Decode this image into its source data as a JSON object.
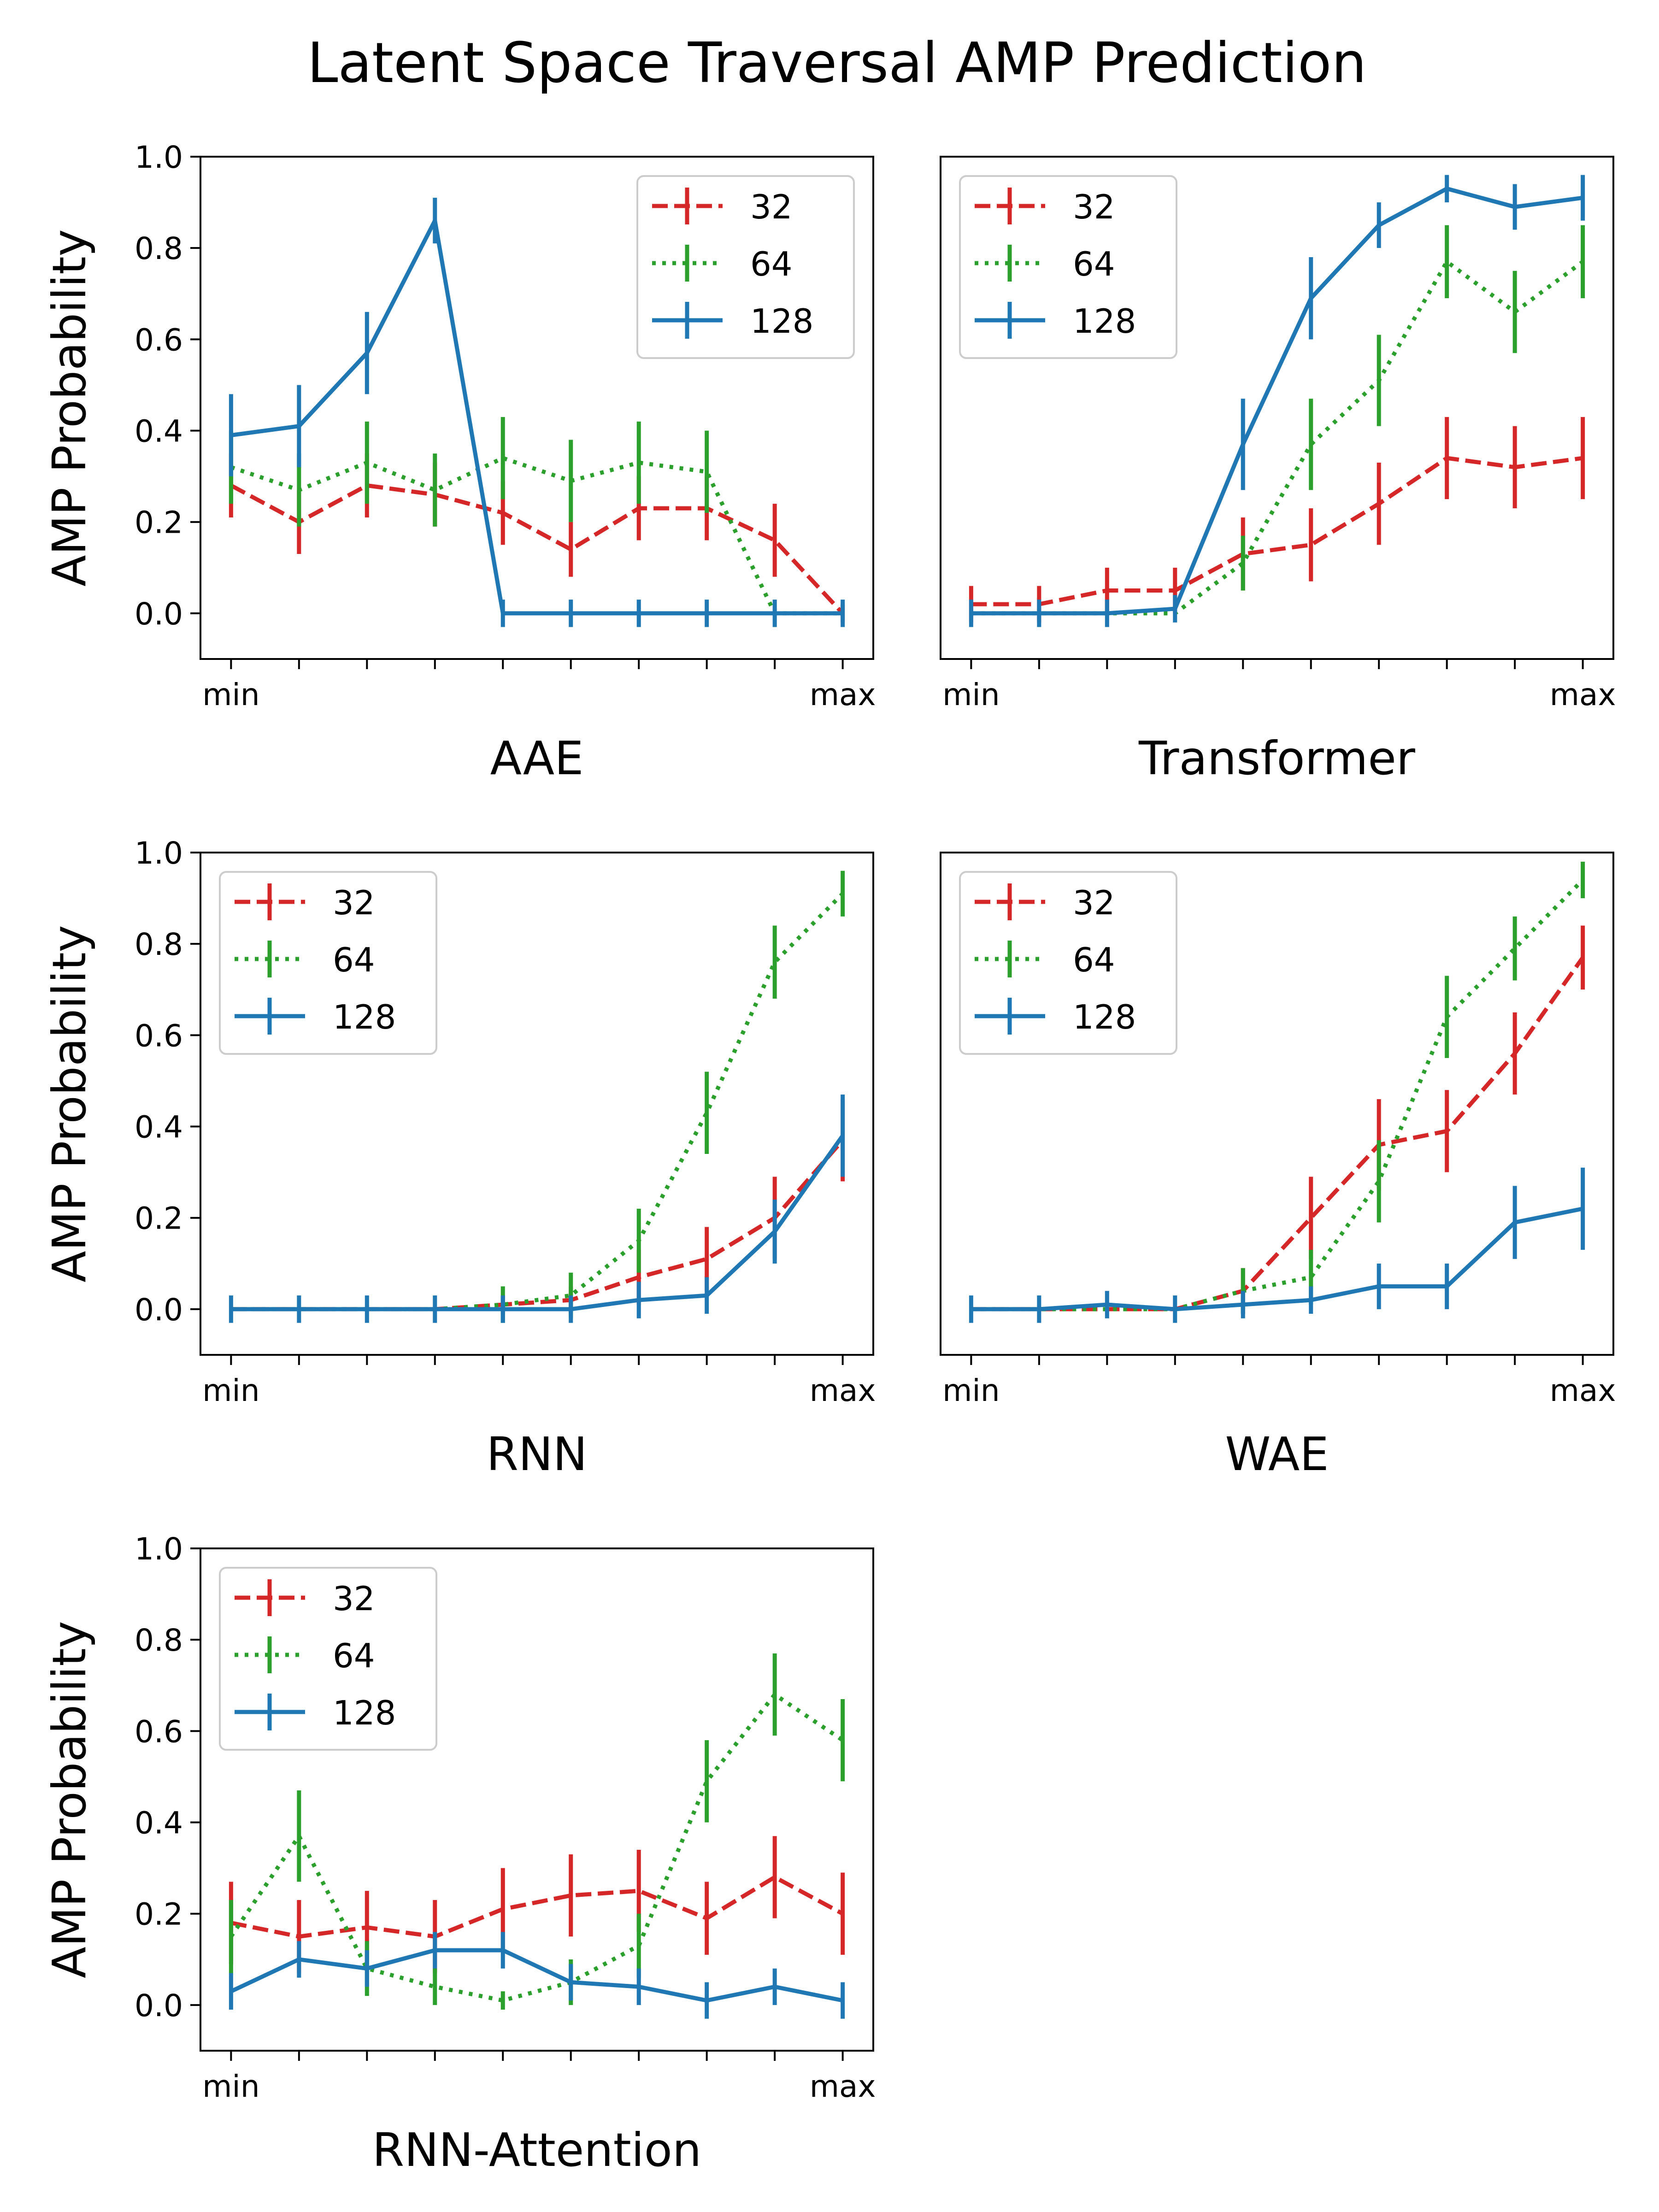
{
  "figure": {
    "title": "Latent Space Traversal AMP Prediction"
  },
  "chart_data": [
    {
      "type": "line",
      "title": "AAE",
      "xlabel": "AAE",
      "ylabel": "AMP Probability",
      "x_tick_labels": [
        "min",
        "max"
      ],
      "x": [
        0,
        1,
        2,
        3,
        4,
        5,
        6,
        7,
        8,
        9
      ],
      "ylim": [
        -0.1,
        1.0
      ],
      "y_ticks": [
        "0.0",
        "0.2",
        "0.4",
        "0.6",
        "0.8",
        "1.0"
      ],
      "legend_position": "upper right",
      "series": [
        {
          "name": "32",
          "color": "#d62728",
          "style": "dashed",
          "values": [
            0.28,
            0.2,
            0.28,
            0.26,
            0.22,
            0.14,
            0.23,
            0.23,
            0.16,
            0.0
          ],
          "errors": [
            0.07,
            0.07,
            0.07,
            0.07,
            0.07,
            0.06,
            0.07,
            0.07,
            0.08,
            0.02
          ]
        },
        {
          "name": "64",
          "color": "#2ca02c",
          "style": "dotted",
          "values": [
            0.32,
            0.27,
            0.33,
            0.27,
            0.34,
            0.29,
            0.33,
            0.31,
            0.0,
            0.0
          ],
          "errors": [
            0.08,
            0.08,
            0.09,
            0.08,
            0.09,
            0.09,
            0.09,
            0.09,
            0.0,
            0.0
          ]
        },
        {
          "name": "128",
          "color": "#1f77b4",
          "style": "solid",
          "values": [
            0.39,
            0.41,
            0.57,
            0.86,
            0.0,
            0.0,
            0.0,
            0.0,
            0.0,
            0.0
          ],
          "errors": [
            0.09,
            0.09,
            0.09,
            0.05,
            0.03,
            0.03,
            0.03,
            0.03,
            0.03,
            0.03
          ]
        }
      ]
    },
    {
      "type": "line",
      "title": "Transformer",
      "xlabel": "Transformer",
      "ylabel": "",
      "x_tick_labels": [
        "min",
        "max"
      ],
      "x": [
        0,
        1,
        2,
        3,
        4,
        5,
        6,
        7,
        8,
        9
      ],
      "ylim": [
        -0.1,
        1.0
      ],
      "y_ticks": [],
      "legend_position": "upper left",
      "series": [
        {
          "name": "32",
          "color": "#d62728",
          "style": "dashed",
          "values": [
            0.02,
            0.02,
            0.05,
            0.05,
            0.13,
            0.15,
            0.24,
            0.34,
            0.32,
            0.34
          ],
          "errors": [
            0.04,
            0.04,
            0.05,
            0.05,
            0.08,
            0.08,
            0.09,
            0.09,
            0.09,
            0.09
          ]
        },
        {
          "name": "64",
          "color": "#2ca02c",
          "style": "dotted",
          "values": [
            0.0,
            0.0,
            0.0,
            0.0,
            0.11,
            0.37,
            0.51,
            0.77,
            0.66,
            0.77
          ],
          "errors": [
            0.0,
            0.0,
            0.0,
            0.0,
            0.06,
            0.1,
            0.1,
            0.08,
            0.09,
            0.08
          ]
        },
        {
          "name": "128",
          "color": "#1f77b4",
          "style": "solid",
          "values": [
            0.0,
            0.0,
            0.0,
            0.01,
            0.37,
            0.69,
            0.85,
            0.93,
            0.89,
            0.91
          ],
          "errors": [
            0.03,
            0.03,
            0.03,
            0.03,
            0.1,
            0.09,
            0.05,
            0.03,
            0.05,
            0.05
          ]
        }
      ]
    },
    {
      "type": "line",
      "title": "RNN",
      "xlabel": "RNN",
      "ylabel": "AMP Probability",
      "x_tick_labels": [
        "min",
        "max"
      ],
      "x": [
        0,
        1,
        2,
        3,
        4,
        5,
        6,
        7,
        8,
        9
      ],
      "ylim": [
        -0.1,
        1.0
      ],
      "y_ticks": [
        "0.0",
        "0.2",
        "0.4",
        "0.6",
        "0.8",
        "1.0"
      ],
      "legend_position": "upper left",
      "series": [
        {
          "name": "32",
          "color": "#d62728",
          "style": "dashed",
          "values": [
            0.0,
            0.0,
            0.0,
            0.0,
            0.01,
            0.02,
            0.07,
            0.11,
            0.2,
            0.37
          ],
          "errors": [
            0.0,
            0.0,
            0.0,
            0.0,
            0.02,
            0.03,
            0.06,
            0.07,
            0.09,
            0.09
          ]
        },
        {
          "name": "64",
          "color": "#2ca02c",
          "style": "dotted",
          "values": [
            0.0,
            0.0,
            0.0,
            0.0,
            0.01,
            0.03,
            0.15,
            0.43,
            0.76,
            0.91
          ],
          "errors": [
            0.0,
            0.0,
            0.0,
            0.0,
            0.04,
            0.05,
            0.07,
            0.09,
            0.08,
            0.05
          ]
        },
        {
          "name": "128",
          "color": "#1f77b4",
          "style": "solid",
          "values": [
            0.0,
            0.0,
            0.0,
            0.0,
            0.0,
            0.0,
            0.02,
            0.03,
            0.17,
            0.38
          ],
          "errors": [
            0.03,
            0.03,
            0.03,
            0.03,
            0.03,
            0.03,
            0.04,
            0.04,
            0.07,
            0.09
          ]
        }
      ]
    },
    {
      "type": "line",
      "title": "WAE",
      "xlabel": "WAE",
      "ylabel": "",
      "x_tick_labels": [
        "min",
        "max"
      ],
      "x": [
        0,
        1,
        2,
        3,
        4,
        5,
        6,
        7,
        8,
        9
      ],
      "ylim": [
        -0.1,
        1.0
      ],
      "y_ticks": [],
      "legend_position": "upper left",
      "series": [
        {
          "name": "32",
          "color": "#d62728",
          "style": "dashed",
          "values": [
            0.0,
            0.0,
            0.0,
            0.0,
            0.04,
            0.2,
            0.36,
            0.39,
            0.56,
            0.77
          ],
          "errors": [
            0.0,
            0.0,
            0.0,
            0.0,
            0.05,
            0.09,
            0.1,
            0.09,
            0.09,
            0.07
          ]
        },
        {
          "name": "64",
          "color": "#2ca02c",
          "style": "dotted",
          "values": [
            0.0,
            0.0,
            0.0,
            0.0,
            0.04,
            0.07,
            0.28,
            0.64,
            0.79,
            0.94
          ],
          "errors": [
            0.0,
            0.0,
            0.0,
            0.0,
            0.05,
            0.06,
            0.09,
            0.09,
            0.07,
            0.04
          ]
        },
        {
          "name": "128",
          "color": "#1f77b4",
          "style": "solid",
          "values": [
            0.0,
            0.0,
            0.01,
            0.0,
            0.01,
            0.02,
            0.05,
            0.05,
            0.19,
            0.22
          ],
          "errors": [
            0.03,
            0.03,
            0.03,
            0.03,
            0.03,
            0.03,
            0.05,
            0.05,
            0.08,
            0.09
          ]
        }
      ]
    },
    {
      "type": "line",
      "title": "RNN-Attention",
      "xlabel": "RNN-Attention",
      "ylabel": "AMP Probability",
      "x_tick_labels": [
        "min",
        "max"
      ],
      "x": [
        0,
        1,
        2,
        3,
        4,
        5,
        6,
        7,
        8,
        9
      ],
      "ylim": [
        -0.1,
        1.0
      ],
      "y_ticks": [
        "0.0",
        "0.2",
        "0.4",
        "0.6",
        "0.8",
        "1.0"
      ],
      "legend_position": "upper left",
      "series": [
        {
          "name": "32",
          "color": "#d62728",
          "style": "dashed",
          "values": [
            0.18,
            0.15,
            0.17,
            0.15,
            0.21,
            0.24,
            0.25,
            0.19,
            0.28,
            0.2
          ],
          "errors": [
            0.09,
            0.08,
            0.08,
            0.08,
            0.09,
            0.09,
            0.09,
            0.08,
            0.09,
            0.09
          ]
        },
        {
          "name": "64",
          "color": "#2ca02c",
          "style": "dotted",
          "values": [
            0.15,
            0.37,
            0.08,
            0.04,
            0.01,
            0.05,
            0.13,
            0.49,
            0.68,
            0.58
          ],
          "errors": [
            0.08,
            0.1,
            0.06,
            0.04,
            0.02,
            0.05,
            0.07,
            0.09,
            0.09,
            0.09
          ]
        },
        {
          "name": "128",
          "color": "#1f77b4",
          "style": "solid",
          "values": [
            0.03,
            0.1,
            0.08,
            0.12,
            0.12,
            0.05,
            0.04,
            0.01,
            0.04,
            0.01
          ],
          "errors": [
            0.04,
            0.04,
            0.04,
            0.04,
            0.04,
            0.04,
            0.04,
            0.04,
            0.04,
            0.04
          ]
        }
      ]
    }
  ]
}
